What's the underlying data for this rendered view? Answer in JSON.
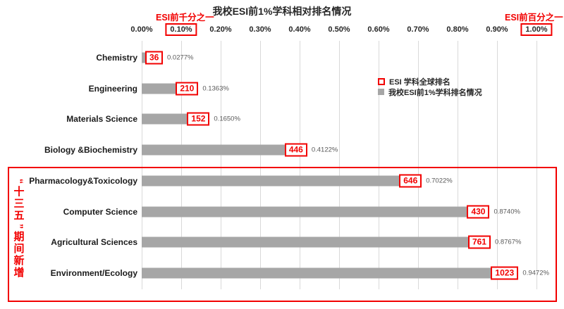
{
  "header": {
    "title": "我校ESI前1%学科相对排名情况",
    "left_tag": "ESI前千分之一",
    "right_tag": "ESI前百分之一"
  },
  "axis": {
    "ticks": [
      "0.00%",
      "0.10%",
      "0.20%",
      "0.30%",
      "0.40%",
      "0.50%",
      "0.60%",
      "0.70%",
      "0.80%",
      "0.90%",
      "1.00%"
    ],
    "boxed_ticks": [
      "0.10%",
      "1.00%"
    ]
  },
  "legend": {
    "items": [
      {
        "label": "ESI 学科全球排名",
        "marker": "red-open-square"
      },
      {
        "label": "我校ESI前1%学科排名情况",
        "marker": "gray-filled-square"
      }
    ]
  },
  "rows": [
    {
      "category": "Chemistry",
      "rank": "36",
      "percent_label": "0.0277%",
      "percent": 0.0277
    },
    {
      "category": "Engineering",
      "rank": "210",
      "percent_label": "0.1363%",
      "percent": 0.1363
    },
    {
      "category": "Materials Science",
      "rank": "152",
      "percent_label": "0.1650%",
      "percent": 0.165
    },
    {
      "category": "Biology &Biochemistry",
      "rank": "446",
      "percent_label": "0.4122%",
      "percent": 0.4122
    },
    {
      "category": "Pharmacology&Toxicology",
      "rank": "646",
      "percent_label": "0.7022%",
      "percent": 0.7022
    },
    {
      "category": "Computer Science",
      "rank": "430",
      "percent_label": "0.8740%",
      "percent": 0.874
    },
    {
      "category": "Agricultural Sciences",
      "rank": "761",
      "percent_label": "0.8767%",
      "percent": 0.8767
    },
    {
      "category": "Environment/Ecology",
      "rank": "1023",
      "percent_label": "0.9472%",
      "percent": 0.9472
    }
  ],
  "group_annotation": {
    "label": "“十三五”期间新增",
    "chars": [
      "“",
      "十",
      "三",
      "五",
      "”",
      "期",
      "间",
      "新",
      "增"
    ],
    "applies_to": [
      "Pharmacology&Toxicology",
      "Computer Science",
      "Agricultural Sciences",
      "Environment/Ecology"
    ]
  },
  "colors": {
    "accent_red": "#f20000",
    "bar_gray": "#a6a6a6",
    "gridline": "#d9d9d9",
    "percent_text": "#595959"
  },
  "chart_data": {
    "type": "bar",
    "orientation": "horizontal",
    "title": "我校ESI前1%学科相对排名情况",
    "categories": [
      "Chemistry",
      "Engineering",
      "Materials Science",
      "Biology &Biochemistry",
      "Pharmacology&Toxicology",
      "Computer Science",
      "Agricultural Sciences",
      "Environment/Ecology"
    ],
    "series": [
      {
        "name": "ESI 学科全球排名",
        "values": [
          36,
          210,
          152,
          446,
          646,
          430,
          761,
          1023
        ]
      },
      {
        "name": "我校ESI前1%学科排名情况",
        "values_percent": [
          0.0277,
          0.1363,
          0.165,
          0.4122,
          0.7022,
          0.874,
          0.8767,
          0.9472
        ]
      }
    ],
    "xlabel": "",
    "ylabel": "",
    "x_axis": {
      "position": "top",
      "min": 0.0,
      "max": 1.0,
      "step": 0.1,
      "unit": "%"
    },
    "grid": true,
    "legend_position": "right-upper",
    "annotations": [
      "ESI前千分之一 → 0.10%",
      "ESI前百分之一 → 1.00%",
      "“十三五”期间新增 box around bottom 4 categories"
    ]
  }
}
